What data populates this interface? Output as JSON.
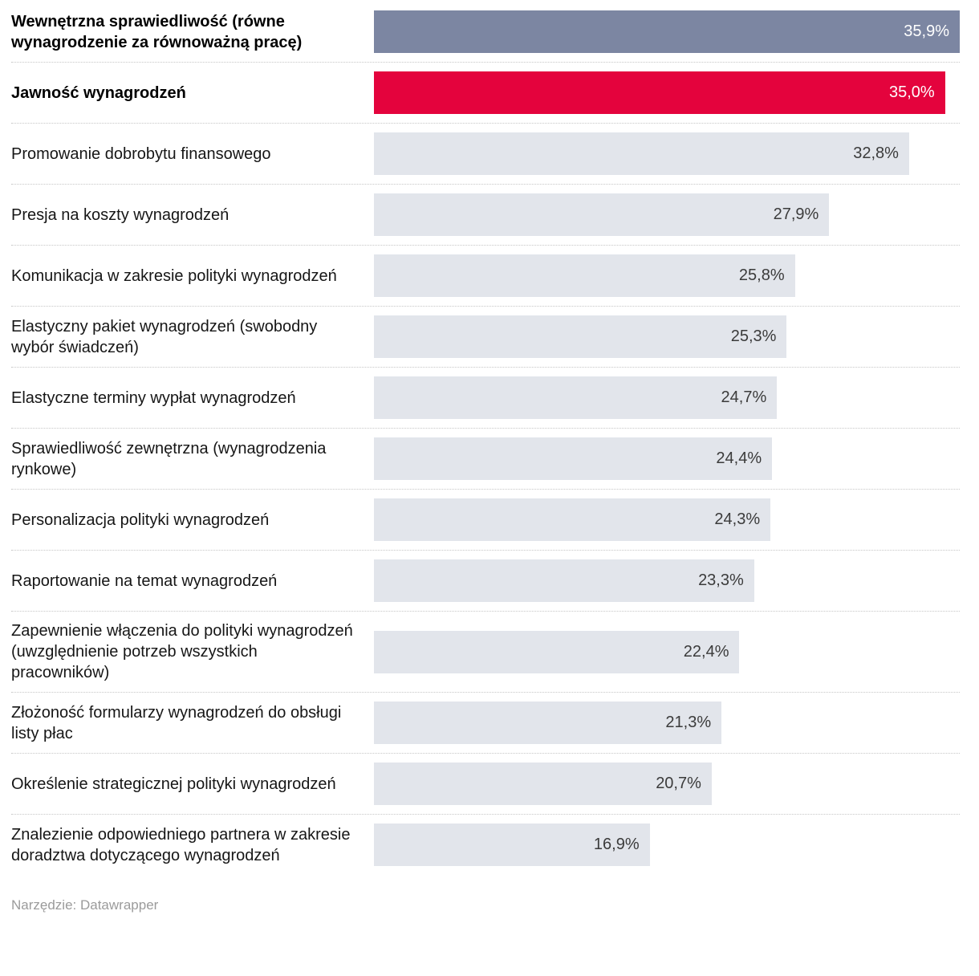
{
  "chart_data": {
    "type": "bar",
    "orientation": "horizontal",
    "title": "",
    "xlabel": "",
    "ylabel": "",
    "max_value": 35.9,
    "grid": false,
    "legend": false,
    "colors": {
      "highlight_blue_gray": "#7c86a2",
      "highlight_red": "#e4033d",
      "default_bar": "#e2e5eb",
      "value_on_color": "#ffffff",
      "value_on_gray": "#3b3b3b"
    },
    "rows": [
      {
        "label": "Wewnętrzna sprawiedliwość (równe wynagrodzenie za równoważną pracę)",
        "value": 35.9,
        "display": "35,9%",
        "bold": true,
        "color": "#7c86a2",
        "text_color": "#ffffff"
      },
      {
        "label": "Jawność wynagrodzeń",
        "value": 35.0,
        "display": "35,0%",
        "bold": true,
        "color": "#e4033d",
        "text_color": "#ffffff"
      },
      {
        "label": "Promowanie dobrobytu finansowego",
        "value": 32.8,
        "display": "32,8%",
        "bold": false,
        "color": "#e2e5eb",
        "text_color": "#3b3b3b"
      },
      {
        "label": "Presja na koszty wynagrodzeń",
        "value": 27.9,
        "display": "27,9%",
        "bold": false,
        "color": "#e2e5eb",
        "text_color": "#3b3b3b"
      },
      {
        "label": "Komunikacja w zakresie polityki wynagrodzeń",
        "value": 25.8,
        "display": "25,8%",
        "bold": false,
        "color": "#e2e5eb",
        "text_color": "#3b3b3b"
      },
      {
        "label": "Elastyczny pakiet wynagrodzeń (swobodny wybór świadczeń)",
        "value": 25.3,
        "display": "25,3%",
        "bold": false,
        "color": "#e2e5eb",
        "text_color": "#3b3b3b"
      },
      {
        "label": "Elastyczne terminy wypłat wynagrodzeń",
        "value": 24.7,
        "display": "24,7%",
        "bold": false,
        "color": "#e2e5eb",
        "text_color": "#3b3b3b"
      },
      {
        "label": "Sprawiedliwość zewnętrzna (wynagrodzenia rynkowe)",
        "value": 24.4,
        "display": "24,4%",
        "bold": false,
        "color": "#e2e5eb",
        "text_color": "#3b3b3b"
      },
      {
        "label": "Personalizacja polityki wynagrodzeń",
        "value": 24.3,
        "display": "24,3%",
        "bold": false,
        "color": "#e2e5eb",
        "text_color": "#3b3b3b"
      },
      {
        "label": "Raportowanie na temat wynagrodzeń",
        "value": 23.3,
        "display": "23,3%",
        "bold": false,
        "color": "#e2e5eb",
        "text_color": "#3b3b3b"
      },
      {
        "label": "Zapewnienie włączenia do polityki wynagrodzeń (uwzględnienie potrzeb wszystkich pracowników)",
        "value": 22.4,
        "display": "22,4%",
        "bold": false,
        "color": "#e2e5eb",
        "text_color": "#3b3b3b"
      },
      {
        "label": "Złożoność formularzy wynagrodzeń do obsługi listy płac",
        "value": 21.3,
        "display": "21,3%",
        "bold": false,
        "color": "#e2e5eb",
        "text_color": "#3b3b3b"
      },
      {
        "label": "Określenie strategicznej polityki wynagrodzeń",
        "value": 20.7,
        "display": "20,7%",
        "bold": false,
        "color": "#e2e5eb",
        "text_color": "#3b3b3b"
      },
      {
        "label": "Znalezienie odpowiedniego partnera w zakresie doradztwa dotyczącego wynagrodzeń",
        "value": 16.9,
        "display": "16,9%",
        "bold": false,
        "color": "#e2e5eb",
        "text_color": "#3b3b3b"
      }
    ]
  },
  "footer": {
    "text": "Narzędzie: Datawrapper"
  }
}
